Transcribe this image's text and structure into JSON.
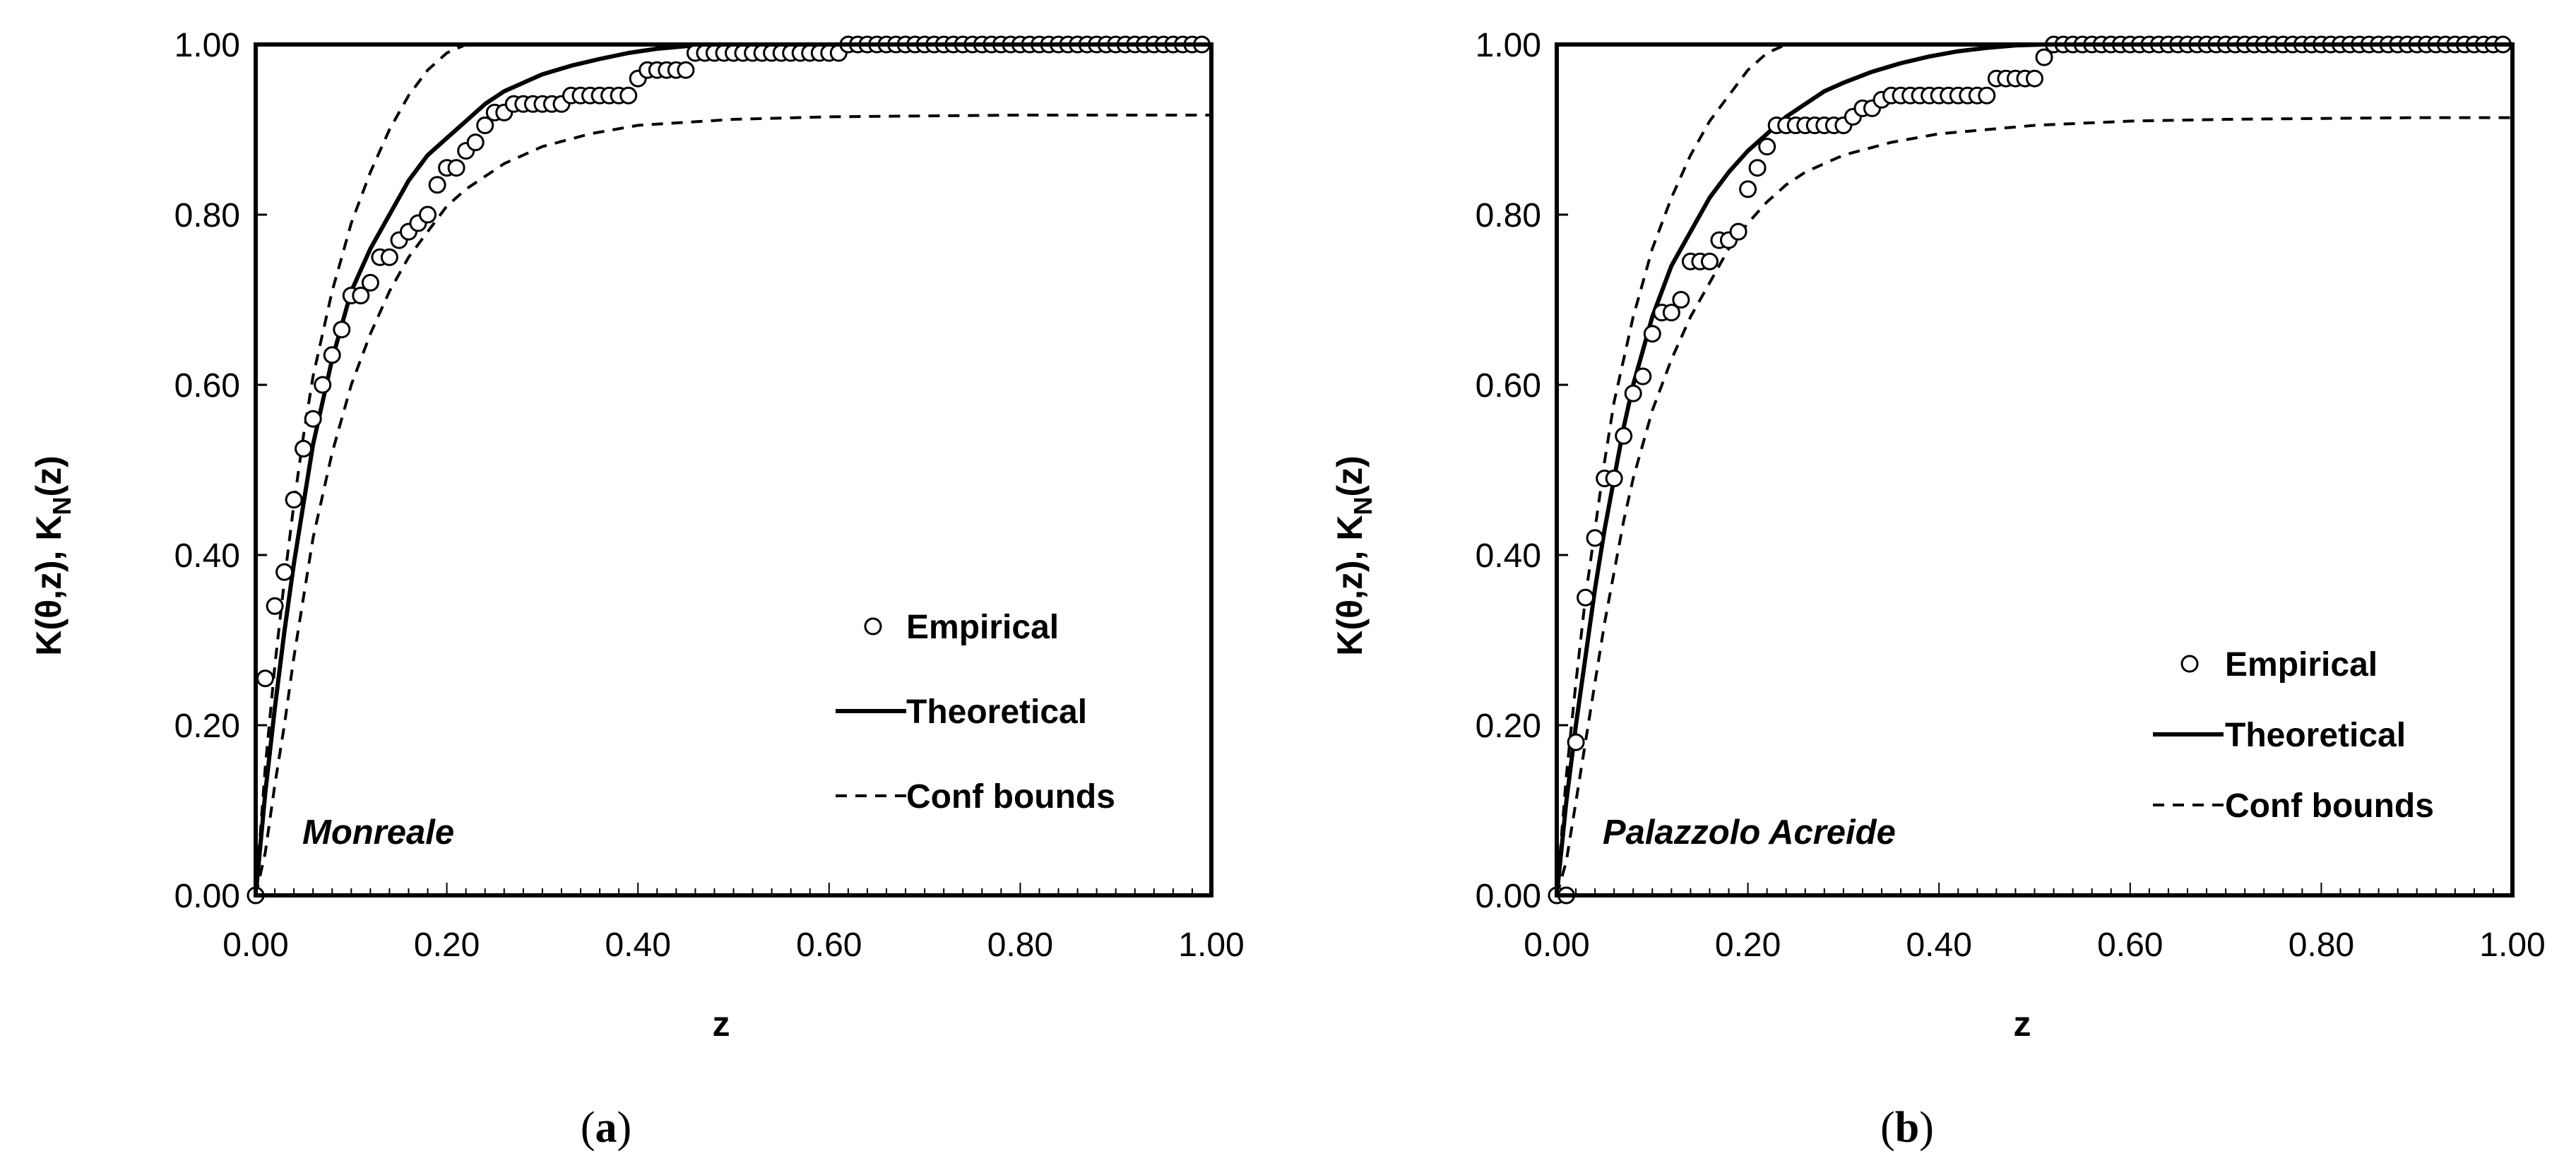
{
  "colors": {
    "background": "#ffffff",
    "ink": "#000000"
  },
  "chart_data": [
    {
      "type": "scatter",
      "panel_label": "(a)",
      "panel_letter": "a",
      "annotation": "Monreale",
      "xlabel": "z",
      "ylabel": "K(θ,z), K_N(z)",
      "ylabel_parts": {
        "pre": "K(θ,z), K",
        "sub": "N",
        "post": "(z)"
      },
      "xlim": [
        0,
        1
      ],
      "ylim": [
        0,
        1
      ],
      "xticks": [
        "0.00",
        "0.20",
        "0.40",
        "0.60",
        "0.80",
        "1.00"
      ],
      "yticks": [
        "0.00",
        "0.20",
        "0.40",
        "0.60",
        "0.80",
        "1.00"
      ],
      "legend": {
        "position": "right-middle",
        "entries": [
          "Empirical",
          "Theoretical",
          "Conf bounds"
        ]
      },
      "series": [
        {
          "name": "Empirical",
          "style": "open-circle-markers",
          "x": [
            0.0,
            0.01,
            0.02,
            0.03,
            0.04,
            0.05,
            0.06,
            0.07,
            0.08,
            0.09,
            0.1,
            0.11,
            0.12,
            0.13,
            0.14,
            0.15,
            0.16,
            0.17,
            0.18,
            0.19,
            0.2,
            0.21,
            0.22,
            0.23,
            0.24,
            0.25,
            0.26,
            0.27,
            0.28,
            0.29,
            0.3,
            0.31,
            0.32,
            0.33,
            0.34,
            0.35,
            0.36,
            0.37,
            0.38,
            0.39,
            0.4,
            0.41,
            0.42,
            0.43,
            0.44,
            0.45,
            0.46,
            0.47,
            0.48,
            0.49,
            0.5,
            0.51,
            0.52,
            0.53,
            0.54,
            0.55,
            0.56,
            0.57,
            0.58,
            0.59,
            0.6,
            0.61,
            0.62,
            0.63,
            0.64,
            0.65,
            0.66,
            0.67,
            0.68,
            0.69,
            0.7,
            0.71,
            0.72,
            0.73,
            0.74,
            0.75,
            0.76,
            0.77,
            0.78,
            0.79,
            0.8,
            0.81,
            0.82,
            0.83,
            0.84,
            0.85,
            0.86,
            0.87,
            0.88,
            0.89,
            0.9,
            0.91,
            0.92,
            0.93,
            0.94,
            0.95,
            0.96,
            0.97,
            0.98,
            0.99
          ],
          "y": [
            0.0,
            0.255,
            0.34,
            0.38,
            0.465,
            0.525,
            0.56,
            0.6,
            0.635,
            0.665,
            0.705,
            0.705,
            0.72,
            0.75,
            0.75,
            0.77,
            0.78,
            0.79,
            0.8,
            0.835,
            0.855,
            0.855,
            0.875,
            0.885,
            0.905,
            0.92,
            0.92,
            0.93,
            0.93,
            0.93,
            0.93,
            0.93,
            0.93,
            0.94,
            0.94,
            0.94,
            0.94,
            0.94,
            0.94,
            0.94,
            0.96,
            0.97,
            0.97,
            0.97,
            0.97,
            0.97,
            0.99,
            0.99,
            0.99,
            0.99,
            0.99,
            0.99,
            0.99,
            0.99,
            0.99,
            0.99,
            0.99,
            0.99,
            0.99,
            0.99,
            0.99,
            0.99,
            1.0,
            1.0,
            1.0,
            1.0,
            1.0,
            1.0,
            1.0,
            1.0,
            1.0,
            1.0,
            1.0,
            1.0,
            1.0,
            1.0,
            1.0,
            1.0,
            1.0,
            1.0,
            1.0,
            1.0,
            1.0,
            1.0,
            1.0,
            1.0,
            1.0,
            1.0,
            1.0,
            1.0,
            1.0,
            1.0,
            1.0,
            1.0,
            1.0,
            1.0,
            1.0,
            1.0,
            1.0,
            1.0
          ]
        },
        {
          "name": "Theoretical",
          "style": "solid-line",
          "x": [
            0.0,
            0.01,
            0.02,
            0.03,
            0.04,
            0.05,
            0.06,
            0.07,
            0.08,
            0.09,
            0.1,
            0.12,
            0.14,
            0.16,
            0.18,
            0.2,
            0.22,
            0.24,
            0.26,
            0.28,
            0.3,
            0.33,
            0.36,
            0.39,
            0.42,
            0.45,
            0.47
          ],
          "y": [
            0.0,
            0.12,
            0.22,
            0.31,
            0.39,
            0.46,
            0.53,
            0.58,
            0.63,
            0.67,
            0.71,
            0.76,
            0.8,
            0.84,
            0.87,
            0.89,
            0.91,
            0.93,
            0.945,
            0.955,
            0.965,
            0.975,
            0.983,
            0.99,
            0.995,
            0.998,
            1.0
          ]
        },
        {
          "name": "Conf bounds (upper)",
          "style": "dashed-line",
          "x": [
            0.0,
            0.01,
            0.02,
            0.03,
            0.04,
            0.05,
            0.06,
            0.07,
            0.08,
            0.09,
            0.1,
            0.12,
            0.14,
            0.16,
            0.18,
            0.2,
            0.22
          ],
          "y": [
            0.0,
            0.15,
            0.27,
            0.37,
            0.46,
            0.54,
            0.61,
            0.66,
            0.71,
            0.75,
            0.79,
            0.85,
            0.9,
            0.94,
            0.97,
            0.99,
            1.0
          ]
        },
        {
          "name": "Conf bounds (lower)",
          "style": "dashed-line",
          "x": [
            0.0,
            0.01,
            0.02,
            0.03,
            0.04,
            0.05,
            0.06,
            0.07,
            0.08,
            0.1,
            0.12,
            0.14,
            0.16,
            0.18,
            0.2,
            0.22,
            0.24,
            0.26,
            0.28,
            0.3,
            0.35,
            0.4,
            0.5,
            0.6,
            0.7,
            0.8,
            0.9,
            1.0
          ],
          "y": [
            0.0,
            0.05,
            0.13,
            0.2,
            0.28,
            0.35,
            0.42,
            0.47,
            0.52,
            0.6,
            0.66,
            0.71,
            0.75,
            0.78,
            0.81,
            0.83,
            0.845,
            0.86,
            0.87,
            0.88,
            0.895,
            0.905,
            0.912,
            0.915,
            0.916,
            0.917,
            0.917,
            0.917
          ]
        }
      ]
    },
    {
      "type": "scatter",
      "panel_label": "(b)",
      "panel_letter": "b",
      "annotation": "Palazzolo Acreide",
      "xlabel": "z",
      "ylabel": "K(θ,z), K_N(z)",
      "ylabel_parts": {
        "pre": "K(θ,z), K",
        "sub": "N",
        "post": "(z)"
      },
      "xlim": [
        0,
        1
      ],
      "ylim": [
        0,
        1
      ],
      "xticks": [
        "0.00",
        "0.20",
        "0.40",
        "0.60",
        "0.80",
        "1.00"
      ],
      "yticks": [
        "0.00",
        "0.20",
        "0.40",
        "0.60",
        "0.80",
        "1.00"
      ],
      "legend": {
        "position": "right-middle",
        "entries": [
          "Empirical",
          "Theoretical",
          "Conf bounds"
        ]
      },
      "series": [
        {
          "name": "Empirical",
          "style": "open-circle-markers",
          "x": [
            0.0,
            0.01,
            0.02,
            0.03,
            0.04,
            0.05,
            0.06,
            0.07,
            0.08,
            0.09,
            0.1,
            0.11,
            0.12,
            0.13,
            0.14,
            0.15,
            0.16,
            0.17,
            0.18,
            0.19,
            0.2,
            0.21,
            0.22,
            0.23,
            0.24,
            0.25,
            0.26,
            0.27,
            0.28,
            0.29,
            0.3,
            0.31,
            0.32,
            0.33,
            0.34,
            0.35,
            0.36,
            0.37,
            0.38,
            0.39,
            0.4,
            0.41,
            0.42,
            0.43,
            0.44,
            0.45,
            0.46,
            0.47,
            0.48,
            0.49,
            0.5,
            0.51,
            0.52,
            0.53,
            0.54,
            0.55,
            0.56,
            0.57,
            0.58,
            0.59,
            0.6,
            0.61,
            0.62,
            0.63,
            0.64,
            0.65,
            0.66,
            0.67,
            0.68,
            0.69,
            0.7,
            0.71,
            0.72,
            0.73,
            0.74,
            0.75,
            0.76,
            0.77,
            0.78,
            0.79,
            0.8,
            0.81,
            0.82,
            0.83,
            0.84,
            0.85,
            0.86,
            0.87,
            0.88,
            0.89,
            0.9,
            0.91,
            0.92,
            0.93,
            0.94,
            0.95,
            0.96,
            0.97,
            0.98,
            0.99
          ],
          "y": [
            0.0,
            0.0,
            0.18,
            0.35,
            0.42,
            0.49,
            0.49,
            0.54,
            0.59,
            0.61,
            0.66,
            0.685,
            0.685,
            0.7,
            0.745,
            0.745,
            0.745,
            0.77,
            0.77,
            0.78,
            0.83,
            0.855,
            0.88,
            0.905,
            0.905,
            0.905,
            0.905,
            0.905,
            0.905,
            0.905,
            0.905,
            0.915,
            0.925,
            0.925,
            0.935,
            0.94,
            0.94,
            0.94,
            0.94,
            0.94,
            0.94,
            0.94,
            0.94,
            0.94,
            0.94,
            0.94,
            0.96,
            0.96,
            0.96,
            0.96,
            0.96,
            0.985,
            1.0,
            1.0,
            1.0,
            1.0,
            1.0,
            1.0,
            1.0,
            1.0,
            1.0,
            1.0,
            1.0,
            1.0,
            1.0,
            1.0,
            1.0,
            1.0,
            1.0,
            1.0,
            1.0,
            1.0,
            1.0,
            1.0,
            1.0,
            1.0,
            1.0,
            1.0,
            1.0,
            1.0,
            1.0,
            1.0,
            1.0,
            1.0,
            1.0,
            1.0,
            1.0,
            1.0,
            1.0,
            1.0,
            1.0,
            1.0,
            1.0,
            1.0,
            1.0,
            1.0,
            1.0,
            1.0,
            1.0,
            1.0
          ]
        },
        {
          "name": "Theoretical",
          "style": "solid-line",
          "x": [
            0.0,
            0.01,
            0.02,
            0.03,
            0.04,
            0.05,
            0.06,
            0.07,
            0.08,
            0.09,
            0.1,
            0.12,
            0.14,
            0.16,
            0.18,
            0.2,
            0.22,
            0.24,
            0.26,
            0.28,
            0.3,
            0.33,
            0.36,
            0.39,
            0.42,
            0.45,
            0.48,
            0.51
          ],
          "y": [
            0.0,
            0.11,
            0.2,
            0.28,
            0.36,
            0.43,
            0.49,
            0.55,
            0.6,
            0.64,
            0.68,
            0.74,
            0.78,
            0.82,
            0.85,
            0.875,
            0.895,
            0.915,
            0.93,
            0.945,
            0.955,
            0.968,
            0.978,
            0.986,
            0.992,
            0.996,
            0.999,
            1.0
          ]
        },
        {
          "name": "Conf bounds (upper)",
          "style": "dashed-line",
          "x": [
            0.0,
            0.01,
            0.02,
            0.03,
            0.04,
            0.05,
            0.06,
            0.07,
            0.08,
            0.09,
            0.1,
            0.12,
            0.14,
            0.16,
            0.18,
            0.2,
            0.22,
            0.24
          ],
          "y": [
            0.0,
            0.14,
            0.25,
            0.35,
            0.43,
            0.51,
            0.58,
            0.63,
            0.68,
            0.72,
            0.76,
            0.82,
            0.87,
            0.91,
            0.94,
            0.97,
            0.99,
            1.0
          ]
        },
        {
          "name": "Conf bounds (lower)",
          "style": "dashed-line",
          "x": [
            0.0,
            0.01,
            0.02,
            0.03,
            0.04,
            0.05,
            0.06,
            0.07,
            0.08,
            0.1,
            0.12,
            0.14,
            0.16,
            0.18,
            0.2,
            0.22,
            0.24,
            0.26,
            0.28,
            0.3,
            0.35,
            0.4,
            0.5,
            0.6,
            0.7,
            0.8,
            0.9,
            1.0
          ],
          "y": [
            0.0,
            0.04,
            0.11,
            0.18,
            0.25,
            0.32,
            0.38,
            0.44,
            0.49,
            0.57,
            0.63,
            0.68,
            0.72,
            0.76,
            0.79,
            0.815,
            0.835,
            0.85,
            0.86,
            0.87,
            0.885,
            0.895,
            0.905,
            0.91,
            0.912,
            0.913,
            0.914,
            0.914
          ]
        }
      ]
    }
  ]
}
